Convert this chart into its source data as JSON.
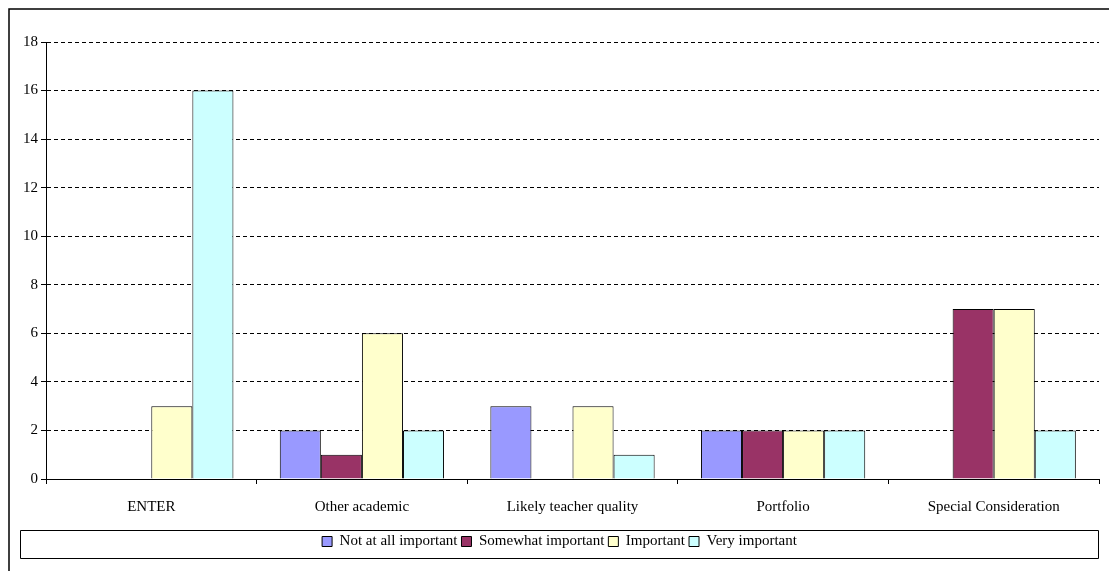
{
  "chart_data": {
    "type": "bar",
    "categories": [
      "ENTER",
      "Other academic",
      "Likely teacher quality",
      "Portfolio",
      "Special Consideration"
    ],
    "series": [
      {
        "name": "Not at all important",
        "color": "#9999ff",
        "values": [
          0,
          2,
          3,
          2,
          0
        ]
      },
      {
        "name": "Somewhat important",
        "color": "#993366",
        "values": [
          0,
          1,
          0,
          2,
          7
        ]
      },
      {
        "name": "Important",
        "color": "#ffffcc",
        "values": [
          3,
          6,
          3,
          2,
          7
        ]
      },
      {
        "name": "Very important",
        "color": "#ccffff",
        "values": [
          16,
          2,
          1,
          2,
          2
        ]
      }
    ],
    "ylim": [
      0,
      18
    ],
    "yticks": [
      0,
      2,
      4,
      6,
      8,
      10,
      12,
      14,
      16,
      18
    ],
    "grid": "y",
    "legend": "bottom"
  }
}
